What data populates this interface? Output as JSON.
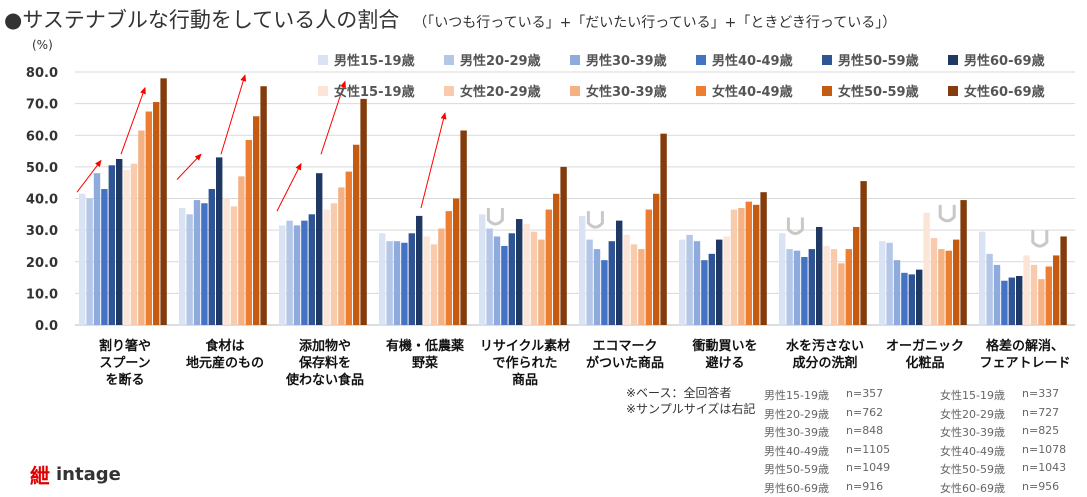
{
  "chart_data": {
    "type": "bar",
    "title": "●サステナブルな行動をしている人の割合",
    "subtitle": "（「いつも行っている」+「だいたい行っている」+「ときどき行っている」）",
    "ylabel": "(%)",
    "ylim": [
      0,
      80
    ],
    "yticks": [
      "0.0",
      "10.0",
      "20.0",
      "30.0",
      "40.0",
      "50.0",
      "60.0",
      "70.0",
      "80.0"
    ],
    "grid": true,
    "legend_position": "top-right",
    "categories": [
      "割り箸や\nスプーン\nを断る",
      "食材は\n地元産のもの",
      "添加物や\n保存料を\n使わない食品",
      "有機・低農薬\n野菜",
      "リサイクル素材\nで作られた\n商品",
      "エコマーク\nがついた商品",
      "衝動買いを\n避ける",
      "水を汚さない\n成分の洗剤",
      "オーガニック\n化粧品",
      "格差の解消、\nフェアトレード"
    ],
    "series": [
      {
        "name": "男性15-19歳",
        "color": "#dae3f3",
        "values": [
          41.5,
          37,
          31.5,
          29,
          35,
          34.5,
          27,
          29,
          26.5,
          29.5
        ]
      },
      {
        "name": "男性20-29歳",
        "color": "#b4c7e7",
        "values": [
          40,
          35,
          33,
          26.5,
          30.5,
          27,
          28.5,
          24,
          26,
          22.5
        ]
      },
      {
        "name": "男性30-39歳",
        "color": "#8faadc",
        "values": [
          48,
          39.5,
          31.5,
          26.5,
          28,
          24,
          26.5,
          23.5,
          20.5,
          19
        ]
      },
      {
        "name": "男性40-49歳",
        "color": "#4472c4",
        "values": [
          43,
          38.5,
          33,
          26,
          25,
          20.5,
          20.5,
          21.5,
          16.5,
          14
        ]
      },
      {
        "name": "男性50-59歳",
        "color": "#2f5597",
        "values": [
          50.5,
          43,
          35,
          29,
          29,
          26.5,
          22.5,
          24,
          16,
          15
        ]
      },
      {
        "name": "男性60-69歳",
        "color": "#1f3864",
        "values": [
          52.5,
          53,
          48,
          34.5,
          33.5,
          33,
          27,
          31,
          17.5,
          15.5
        ]
      },
      {
        "name": "女性15-19歳",
        "color": "#fce4d6",
        "values": [
          49,
          40,
          36.5,
          28,
          32,
          28.5,
          28,
          25,
          35.5,
          22
        ]
      },
      {
        "name": "女性20-29歳",
        "color": "#f8cbad",
        "values": [
          51,
          37.5,
          38.5,
          25.5,
          29.5,
          25.5,
          36.5,
          24,
          27.5,
          19
        ]
      },
      {
        "name": "女性30-39歳",
        "color": "#f4b183",
        "values": [
          61.5,
          47,
          43.5,
          30.5,
          27,
          24,
          37,
          19.5,
          24,
          14.5
        ]
      },
      {
        "name": "女性40-49歳",
        "color": "#ed7d31",
        "values": [
          67.5,
          58.5,
          48.5,
          36,
          36.5,
          36.5,
          39,
          24,
          23.5,
          18.5
        ]
      },
      {
        "name": "女性50-59歳",
        "color": "#c55a11",
        "values": [
          70.5,
          66,
          57,
          40,
          41.5,
          41.5,
          38,
          31,
          27,
          22
        ]
      },
      {
        "name": "女性60-69歳",
        "color": "#843c0c",
        "values": [
          78,
          75.5,
          71.5,
          61.5,
          50,
          60.5,
          42,
          45.5,
          39.5,
          28
        ]
      }
    ]
  },
  "notes": "※ベース：全回答者\n※サンプルサイズは右記",
  "sample_sizes": [
    {
      "label": "男性15-19歳",
      "n": "n=357"
    },
    {
      "label": "男性20-29歳",
      "n": "n=762"
    },
    {
      "label": "男性30-39歳",
      "n": "n=848"
    },
    {
      "label": "男性40-49歳",
      "n": "n=1105"
    },
    {
      "label": "男性50-59歳",
      "n": "n=1049"
    },
    {
      "label": "男性60-69歳",
      "n": "n=916"
    },
    {
      "label": "女性15-19歳",
      "n": "n=337"
    },
    {
      "label": "女性20-29歳",
      "n": "n=727"
    },
    {
      "label": "女性30-39歳",
      "n": "n=825"
    },
    {
      "label": "女性40-49歳",
      "n": "n=1078"
    },
    {
      "label": "女性50-59歳",
      "n": "n=1043"
    },
    {
      "label": "女性60-69歳",
      "n": "n=956"
    }
  ],
  "logo": {
    "text": "intage",
    "mark": "紲"
  }
}
